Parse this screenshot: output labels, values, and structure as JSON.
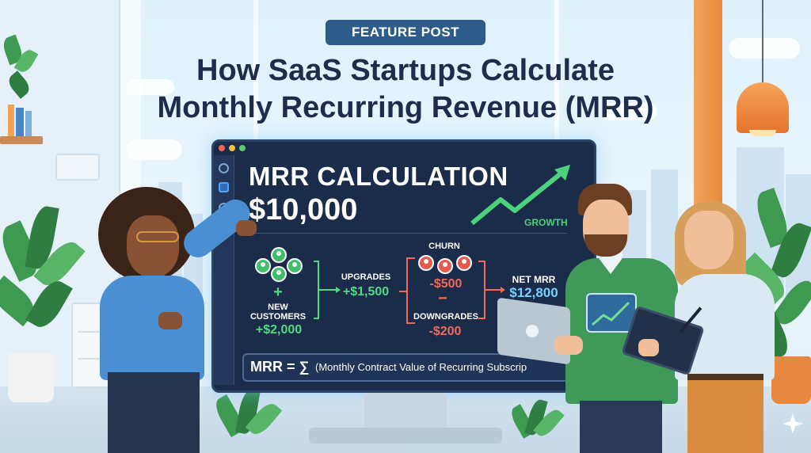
{
  "badge": "FEATURE POST",
  "title_lines": [
    "How SaaS Startups Calculate",
    "Monthly Recurring Revenue (MRR)"
  ],
  "screen": {
    "heading": "MRR CALCULATION",
    "total": "$10,000",
    "growth_label": "GROWTH",
    "new_customers_plus": "+",
    "new_customers_label_1": "NEW",
    "new_customers_label_2": "CUSTOMERS",
    "new_customers_value": "+$2,000",
    "upgrades_label": "UPGRADES",
    "upgrades_value": "+$1,500",
    "churn_label": "CHURN",
    "churn_value": "-$500",
    "minus": "−",
    "downgrades_label": "DOWNGRADES",
    "downgrades_value": "-$200",
    "net_label": "NET MRR",
    "net_value": "$12,800",
    "formula_lhs": "MRR = ∑",
    "formula_rhs": "(Monthly Contract Value of Recurring Subscrip"
  },
  "colors": {
    "positive": "#54d983",
    "negative": "#f26a5a",
    "net": "#7ad0ff",
    "title": "#1f2d4d",
    "badge_bg": "#2d5c8a"
  },
  "icons": [
    "search-icon",
    "chart-icon",
    "circle-icon",
    "gear-icon",
    "growth-arrow-icon",
    "customer-group-icon",
    "churn-group-icon"
  ]
}
